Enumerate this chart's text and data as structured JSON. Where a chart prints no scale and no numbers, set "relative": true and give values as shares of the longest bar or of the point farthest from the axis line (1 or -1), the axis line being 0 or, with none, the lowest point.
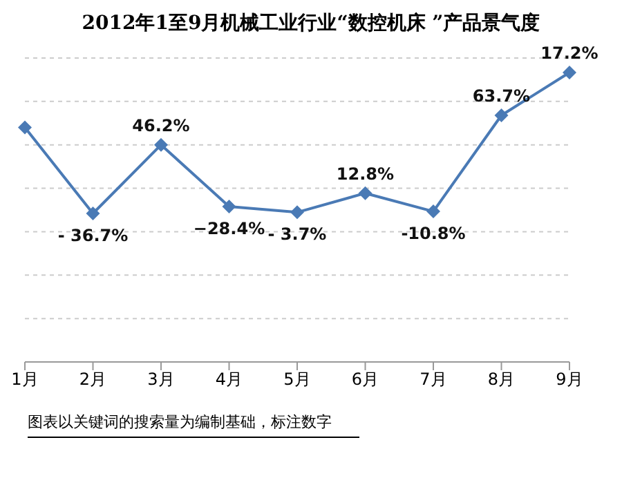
{
  "chart_data": {
    "type": "line",
    "title": "2012年1至9月机械工业行业“数控机床 ”产品景气度",
    "relative": true,
    "categories": [
      "1月",
      "2月",
      "3月",
      "4月",
      "5月",
      "6月",
      "7月",
      "8月",
      "9月"
    ],
    "series": [
      {
        "color": "#4a7ab5",
        "values": [
          0.81,
          0.513,
          0.75,
          0.537,
          0.517,
          0.583,
          0.52,
          0.852,
          1
        ]
      }
    ],
    "marker": "diamond",
    "grid": "y",
    "annotations": [
      {
        "text": "- 36.7%",
        "x": "2月",
        "y": 0.513
      },
      {
        "text": "46.2%",
        "x": "3月",
        "y": 0.75
      },
      {
        "text": "−28.4%",
        "x": "4月",
        "y": 0.537
      },
      {
        "text": "- 3.7%",
        "x": "5月",
        "y": 0.517
      },
      {
        "text": "12.8%",
        "x": "6月",
        "y": 0.583
      },
      {
        "text": "-10.8%",
        "x": "7月",
        "y": 0.52
      },
      {
        "text": "63.7%",
        "x": "8月",
        "y": 0.852
      },
      {
        "text": "17.2%",
        "x": "9月",
        "y": 1
      },
      "图表以关键词的搜索量为编制基础，标注数字"
    ]
  }
}
